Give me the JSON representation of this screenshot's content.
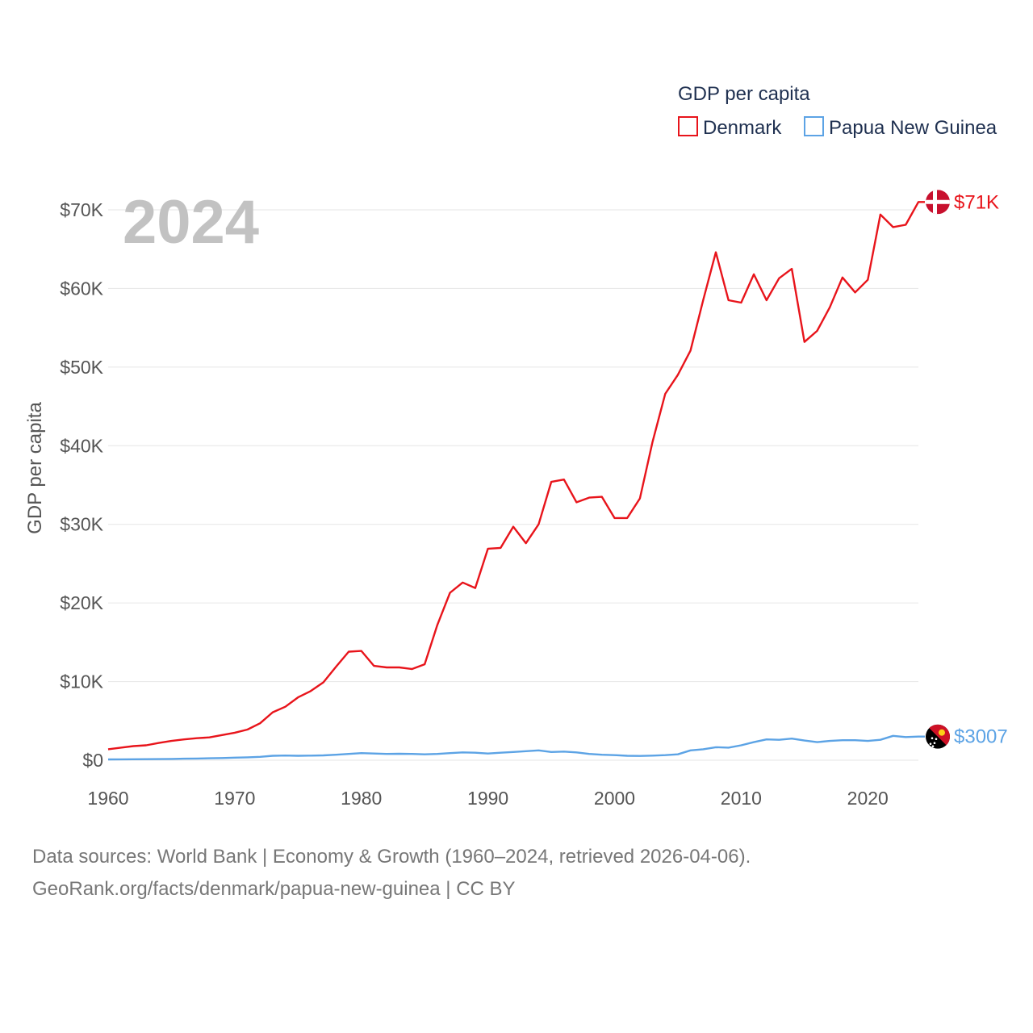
{
  "chart_data": {
    "type": "line",
    "year_label": "2024",
    "ylabel": "GDP per capita",
    "xlim": [
      1960,
      2024
    ],
    "ylim": [
      0,
      70000
    ],
    "xticks": [
      {
        "value": 1960,
        "label": "1960"
      },
      {
        "value": 1970,
        "label": "1970"
      },
      {
        "value": 1980,
        "label": "1980"
      },
      {
        "value": 1990,
        "label": "1990"
      },
      {
        "value": 2000,
        "label": "2000"
      },
      {
        "value": 2010,
        "label": "2010"
      },
      {
        "value": 2020,
        "label": "2020"
      }
    ],
    "yticks": [
      {
        "value": 0,
        "label": "$0"
      },
      {
        "value": 10000,
        "label": "$10K"
      },
      {
        "value": 20000,
        "label": "$20K"
      },
      {
        "value": 30000,
        "label": "$30K"
      },
      {
        "value": 40000,
        "label": "$40K"
      },
      {
        "value": 50000,
        "label": "$50K"
      },
      {
        "value": 60000,
        "label": "$60K"
      },
      {
        "value": 70000,
        "label": "$70K"
      }
    ],
    "legend": {
      "title": "GDP per capita",
      "position": "top-right"
    },
    "x": [
      1960,
      1961,
      1962,
      1963,
      1964,
      1965,
      1966,
      1967,
      1968,
      1969,
      1970,
      1971,
      1972,
      1973,
      1974,
      1975,
      1976,
      1977,
      1978,
      1979,
      1980,
      1981,
      1982,
      1983,
      1984,
      1985,
      1986,
      1987,
      1988,
      1989,
      1990,
      1991,
      1992,
      1993,
      1994,
      1995,
      1996,
      1997,
      1998,
      1999,
      2000,
      2001,
      2002,
      2003,
      2004,
      2005,
      2006,
      2007,
      2008,
      2009,
      2010,
      2011,
      2012,
      2013,
      2014,
      2015,
      2016,
      2017,
      2018,
      2019,
      2020,
      2021,
      2022,
      2023,
      2024
    ],
    "series": [
      {
        "name": "Denmark",
        "color": "#e8141b",
        "end_label": "$71K",
        "flag": "denmark-flag-icon",
        "values": [
          1400,
          1600,
          1800,
          1900,
          2200,
          2450,
          2650,
          2800,
          2900,
          3200,
          3500,
          3900,
          4700,
          6100,
          6800,
          8000,
          8800,
          9900,
          11900,
          13800,
          13900,
          12000,
          11800,
          11800,
          11600,
          12200,
          17200,
          21300,
          22600,
          21900,
          26900,
          27000,
          29700,
          27600,
          30000,
          35400,
          35700,
          32800,
          33400,
          33500,
          30800,
          30800,
          33300,
          40500,
          46600,
          49000,
          52100,
          58500,
          64600,
          58500,
          58200,
          61800,
          58500,
          61300,
          62500,
          53200,
          54600,
          57600,
          61400,
          59500,
          61100,
          69400,
          67800,
          68100,
          71000
        ]
      },
      {
        "name": "Papua New Guinea",
        "color": "#5ca3e5",
        "end_label": "$3007",
        "flag": "papua-new-guinea-flag-icon",
        "values": [
          100,
          110,
          120,
          130,
          140,
          160,
          190,
          220,
          250,
          280,
          330,
          370,
          430,
          560,
          600,
          560,
          590,
          620,
          700,
          800,
          900,
          850,
          800,
          820,
          800,
          750,
          800,
          900,
          1000,
          950,
          850,
          950,
          1050,
          1150,
          1250,
          1050,
          1100,
          1000,
          800,
          700,
          650,
          560,
          540,
          590,
          650,
          750,
          1250,
          1400,
          1650,
          1600,
          1900,
          2300,
          2650,
          2600,
          2750,
          2500,
          2300,
          2450,
          2550,
          2550,
          2450,
          2600,
          3100,
          2950,
          3007
        ]
      }
    ]
  },
  "source": {
    "line1": "Data sources: World Bank | Economy & Growth (1960–2024, retrieved 2026-04-06).",
    "line2": "GeoRank.org/facts/denmark/papua-new-guinea | CC BY"
  }
}
